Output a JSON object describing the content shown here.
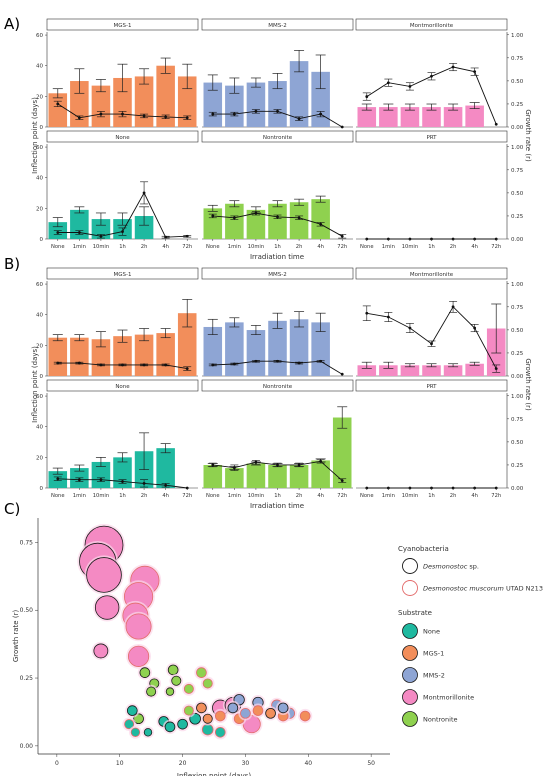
{
  "panels": {
    "A": "A)",
    "B": "B)",
    "C": "C)"
  },
  "facet_x_label": "Irradiation time",
  "facet_y_left_label": "Inflection point (days)",
  "facet_y_right_label": "Growth rate (r)",
  "categories": [
    "None",
    "1min",
    "10min",
    "1h",
    "2h",
    "4h",
    "72h"
  ],
  "facet_colors": {
    "MGS-1": "#f28e5b",
    "MMS-2": "#8ea5d4",
    "Montmorillonite": "#f48ac3",
    "None": "#1fb9a0",
    "Nontronite": "#8fd14f",
    "PRT": "#ffffff"
  },
  "chart_data": [
    {
      "panel": "A",
      "type": "bar",
      "y_left_lim": [
        0,
        62
      ],
      "y_left_ticks": [
        0,
        20,
        40,
        60
      ],
      "y_right_lim": [
        0,
        1.03
      ],
      "y_right_ticks": [
        "0.00",
        "0.25",
        "0.50",
        "0.75",
        "1.00"
      ],
      "facets": [
        {
          "name": "MGS-1",
          "bars": [
            22,
            30,
            27,
            32,
            33,
            40,
            33
          ],
          "err": [
            3,
            8,
            4,
            9,
            5,
            5,
            8
          ],
          "rate": [
            0.25,
            0.1,
            0.14,
            0.14,
            0.12,
            0.11,
            0.1
          ],
          "rate_err": [
            0.03,
            0.02,
            0.03,
            0.03,
            0.02,
            0.02,
            0.02
          ]
        },
        {
          "name": "MMS-2",
          "bars": [
            29,
            27,
            29,
            30,
            43,
            36,
            0
          ],
          "err": [
            5,
            5,
            3,
            5,
            7,
            11,
            0
          ],
          "rate": [
            0.14,
            0.14,
            0.17,
            0.17,
            0.09,
            0.14,
            0.0
          ],
          "rate_err": [
            0.02,
            0.02,
            0.02,
            0.02,
            0.02,
            0.03,
            0.0
          ]
        },
        {
          "name": "Montmorillonite",
          "bars": [
            13,
            13,
            13,
            13,
            13,
            14,
            0
          ],
          "err": [
            2,
            2,
            2,
            2,
            2,
            2,
            0
          ],
          "rate": [
            0.33,
            0.48,
            0.44,
            0.55,
            0.65,
            0.6,
            0.03
          ],
          "rate_err": [
            0.04,
            0.04,
            0.04,
            0.04,
            0.04,
            0.04,
            0.0
          ]
        },
        {
          "name": "None",
          "bars": [
            11,
            19,
            13,
            13,
            15,
            0,
            0
          ],
          "err": [
            3,
            2,
            4,
            4,
            6,
            0,
            0
          ],
          "rate": [
            0.07,
            0.07,
            0.03,
            0.08,
            0.5,
            0.02,
            0.03
          ],
          "rate_err": [
            0.02,
            0.02,
            0.02,
            0.04,
            0.12,
            0.01,
            0.01
          ]
        },
        {
          "name": "Nontronite",
          "bars": [
            20,
            23,
            19,
            23,
            24,
            26,
            0
          ],
          "err": [
            2,
            2,
            2,
            2,
            2,
            2,
            0
          ],
          "rate": [
            0.25,
            0.23,
            0.28,
            0.24,
            0.23,
            0.16,
            0.03
          ],
          "rate_err": [
            0.02,
            0.02,
            0.02,
            0.02,
            0.02,
            0.02,
            0.02
          ]
        },
        {
          "name": "PRT",
          "bars": [
            0,
            0,
            0,
            0,
            0,
            0,
            0
          ],
          "err": [
            0,
            0,
            0,
            0,
            0,
            0,
            0
          ],
          "rate": [
            0.0,
            0.0,
            0.0,
            0.0,
            0.0,
            0.0,
            0.0
          ],
          "rate_err": [
            0,
            0,
            0,
            0,
            0,
            0,
            0
          ]
        }
      ]
    },
    {
      "panel": "B",
      "type": "bar",
      "y_left_lim": [
        0,
        62
      ],
      "y_left_ticks": [
        0,
        20,
        40,
        60
      ],
      "y_right_lim": [
        0,
        1.03
      ],
      "y_right_ticks": [
        "0.00",
        "0.25",
        "0.50",
        "0.75",
        "1.00"
      ],
      "facets": [
        {
          "name": "MGS-1",
          "bars": [
            25,
            25,
            24,
            26,
            27,
            28,
            41
          ],
          "err": [
            2,
            2,
            5,
            4,
            4,
            3,
            9
          ],
          "rate": [
            0.14,
            0.14,
            0.12,
            0.12,
            0.12,
            0.12,
            0.08
          ],
          "rate_err": [
            0.01,
            0.01,
            0.01,
            0.01,
            0.01,
            0.01,
            0.02
          ]
        },
        {
          "name": "MMS-2",
          "bars": [
            32,
            35,
            30,
            36,
            37,
            35,
            0
          ],
          "err": [
            5,
            3,
            3,
            5,
            5,
            6,
            0
          ],
          "rate": [
            0.12,
            0.13,
            0.16,
            0.16,
            0.14,
            0.16,
            0.02
          ],
          "rate_err": [
            0.01,
            0.01,
            0.01,
            0.01,
            0.01,
            0.01,
            0.0
          ]
        },
        {
          "name": "Montmorillonite",
          "bars": [
            7,
            7,
            7,
            7,
            7,
            8,
            31
          ],
          "err": [
            2,
            2,
            1,
            1,
            1,
            1,
            16
          ],
          "rate": [
            0.68,
            0.64,
            0.52,
            0.35,
            0.75,
            0.52,
            0.08
          ],
          "rate_err": [
            0.08,
            0.05,
            0.05,
            0.03,
            0.06,
            0.04,
            0.04
          ]
        },
        {
          "name": "None",
          "bars": [
            11,
            13,
            17,
            20,
            24,
            26,
            0
          ],
          "err": [
            2,
            2,
            3,
            3,
            12,
            3,
            0
          ],
          "rate": [
            0.1,
            0.09,
            0.09,
            0.07,
            0.05,
            0.03,
            0.0
          ],
          "rate_err": [
            0.02,
            0.02,
            0.02,
            0.02,
            0.04,
            0.02,
            0.0
          ]
        },
        {
          "name": "Nontronite",
          "bars": [
            15,
            13,
            16,
            15,
            15,
            18,
            46
          ],
          "err": [
            1,
            1,
            1,
            1,
            1,
            1,
            7
          ],
          "rate": [
            0.25,
            0.22,
            0.28,
            0.25,
            0.25,
            0.29,
            0.08
          ],
          "rate_err": [
            0.02,
            0.03,
            0.02,
            0.02,
            0.02,
            0.02,
            0.02
          ]
        },
        {
          "name": "PRT",
          "bars": [
            0,
            0,
            0,
            0,
            0,
            0,
            0
          ],
          "err": [
            0,
            0,
            0,
            0,
            0,
            0,
            0
          ],
          "rate": [
            0.0,
            0.0,
            0.0,
            0.0,
            0.0,
            0.0,
            0.0
          ],
          "rate_err": [
            0,
            0,
            0,
            0,
            0,
            0,
            0
          ]
        }
      ]
    },
    {
      "panel": "C",
      "type": "scatter",
      "xlabel": "Inflexion point (days)",
      "ylabel": "Growth rate (r)",
      "xlim": [
        -3,
        53
      ],
      "ylim": [
        -0.03,
        0.84
      ],
      "x_ticks": [
        0,
        10,
        20,
        30,
        40,
        50
      ],
      "y_ticks": [
        "0.00",
        "0.25",
        "0.50",
        "0.75"
      ],
      "legend_cyano_title": "Cyanobacteria",
      "legend_cyano": [
        {
          "label_italic": "Desmonostoc",
          "label_rest": " sp.",
          "style": "black-outline"
        },
        {
          "label_italic": "Desmonostoc muscorum",
          "label_rest": " UTAD N213",
          "style": "red-outline"
        }
      ],
      "legend_sub_title": "Substrate",
      "legend_sub": [
        "None",
        "MGS-1",
        "MMS-2",
        "Montmorillonite",
        "Nontronite"
      ],
      "points": [
        {
          "x": 7.5,
          "y": 0.74,
          "s": 1.0,
          "sub": "Montmorillonite",
          "c": "black"
        },
        {
          "x": 6.5,
          "y": 0.68,
          "s": 0.95,
          "sub": "Montmorillonite",
          "c": "black"
        },
        {
          "x": 7.5,
          "y": 0.63,
          "s": 0.9,
          "sub": "Montmorillonite",
          "c": "black"
        },
        {
          "x": 8,
          "y": 0.51,
          "s": 0.55,
          "sub": "Montmorillonite",
          "c": "black"
        },
        {
          "x": 7,
          "y": 0.35,
          "s": 0.25,
          "sub": "Montmorillonite",
          "c": "black"
        },
        {
          "x": 14,
          "y": 0.61,
          "s": 0.7,
          "sub": "Montmorillonite",
          "c": "red"
        },
        {
          "x": 13,
          "y": 0.55,
          "s": 0.7,
          "sub": "Montmorillonite",
          "c": "red"
        },
        {
          "x": 12.5,
          "y": 0.48,
          "s": 0.6,
          "sub": "Montmorillonite",
          "c": "red"
        },
        {
          "x": 13,
          "y": 0.44,
          "s": 0.6,
          "sub": "Montmorillonite",
          "c": "red"
        },
        {
          "x": 13,
          "y": 0.33,
          "s": 0.45,
          "sub": "Montmorillonite",
          "c": "red"
        },
        {
          "x": 31,
          "y": 0.08,
          "s": 0.35,
          "sub": "Montmorillonite",
          "c": "red"
        },
        {
          "x": 26,
          "y": 0.14,
          "s": 0.3,
          "sub": "Montmorillonite",
          "c": "black"
        },
        {
          "x": 28,
          "y": 0.15,
          "s": 0.3,
          "sub": "Montmorillonite",
          "c": "black"
        },
        {
          "x": 14,
          "y": 0.27,
          "s": 0.12,
          "sub": "Nontronite",
          "c": "black"
        },
        {
          "x": 15.5,
          "y": 0.23,
          "s": 0.1,
          "sub": "Nontronite",
          "c": "black"
        },
        {
          "x": 15,
          "y": 0.2,
          "s": 0.1,
          "sub": "Nontronite",
          "c": "black"
        },
        {
          "x": 18.5,
          "y": 0.28,
          "s": 0.12,
          "sub": "Nontronite",
          "c": "black"
        },
        {
          "x": 19,
          "y": 0.24,
          "s": 0.1,
          "sub": "Nontronite",
          "c": "black"
        },
        {
          "x": 18,
          "y": 0.2,
          "s": 0.05,
          "sub": "Nontronite",
          "c": "black"
        },
        {
          "x": 23,
          "y": 0.27,
          "s": 0.12,
          "sub": "Nontronite",
          "c": "red"
        },
        {
          "x": 24,
          "y": 0.23,
          "s": 0.1,
          "sub": "Nontronite",
          "c": "red"
        },
        {
          "x": 21,
          "y": 0.21,
          "s": 0.1,
          "sub": "Nontronite",
          "c": "red"
        },
        {
          "x": 13,
          "y": 0.1,
          "s": 0.12,
          "sub": "Nontronite",
          "c": "black"
        },
        {
          "x": 21,
          "y": 0.13,
          "s": 0.1,
          "sub": "Nontronite",
          "c": "red"
        },
        {
          "x": 12,
          "y": 0.13,
          "s": 0.12,
          "sub": "None",
          "c": "black"
        },
        {
          "x": 11.5,
          "y": 0.08,
          "s": 0.1,
          "sub": "None",
          "c": "red"
        },
        {
          "x": 17,
          "y": 0.09,
          "s": 0.12,
          "sub": "None",
          "c": "black"
        },
        {
          "x": 18,
          "y": 0.07,
          "s": 0.12,
          "sub": "None",
          "c": "black"
        },
        {
          "x": 20,
          "y": 0.08,
          "s": 0.12,
          "sub": "None",
          "c": "black"
        },
        {
          "x": 22,
          "y": 0.1,
          "s": 0.15,
          "sub": "None",
          "c": "black"
        },
        {
          "x": 24,
          "y": 0.06,
          "s": 0.15,
          "sub": "None",
          "c": "red"
        },
        {
          "x": 26,
          "y": 0.05,
          "s": 0.12,
          "sub": "None",
          "c": "red"
        },
        {
          "x": 14.5,
          "y": 0.05,
          "s": 0.05,
          "sub": "None",
          "c": "black"
        },
        {
          "x": 12.5,
          "y": 0.05,
          "s": 0.08,
          "sub": "None",
          "c": "red"
        },
        {
          "x": 23,
          "y": 0.14,
          "s": 0.12,
          "sub": "MGS-1",
          "c": "black"
        },
        {
          "x": 26,
          "y": 0.11,
          "s": 0.12,
          "sub": "MGS-1",
          "c": "red"
        },
        {
          "x": 29,
          "y": 0.1,
          "s": 0.12,
          "sub": "MGS-1",
          "c": "red"
        },
        {
          "x": 32,
          "y": 0.13,
          "s": 0.12,
          "sub": "MGS-1",
          "c": "red"
        },
        {
          "x": 34,
          "y": 0.12,
          "s": 0.12,
          "sub": "MGS-1",
          "c": "black"
        },
        {
          "x": 36,
          "y": 0.11,
          "s": 0.12,
          "sub": "MGS-1",
          "c": "red"
        },
        {
          "x": 39.5,
          "y": 0.11,
          "s": 0.12,
          "sub": "MGS-1",
          "c": "red"
        },
        {
          "x": 24,
          "y": 0.1,
          "s": 0.1,
          "sub": "MGS-1",
          "c": "black"
        },
        {
          "x": 28,
          "y": 0.14,
          "s": 0.12,
          "sub": "MMS-2",
          "c": "black"
        },
        {
          "x": 29,
          "y": 0.17,
          "s": 0.14,
          "sub": "MMS-2",
          "c": "black"
        },
        {
          "x": 32,
          "y": 0.16,
          "s": 0.14,
          "sub": "MMS-2",
          "c": "black"
        },
        {
          "x": 35,
          "y": 0.15,
          "s": 0.14,
          "sub": "MMS-2",
          "c": "red"
        },
        {
          "x": 37,
          "y": 0.12,
          "s": 0.14,
          "sub": "MMS-2",
          "c": "red"
        },
        {
          "x": 36,
          "y": 0.14,
          "s": 0.12,
          "sub": "MMS-2",
          "c": "black"
        },
        {
          "x": 30,
          "y": 0.12,
          "s": 0.12,
          "sub": "MMS-2",
          "c": "red"
        }
      ]
    }
  ]
}
